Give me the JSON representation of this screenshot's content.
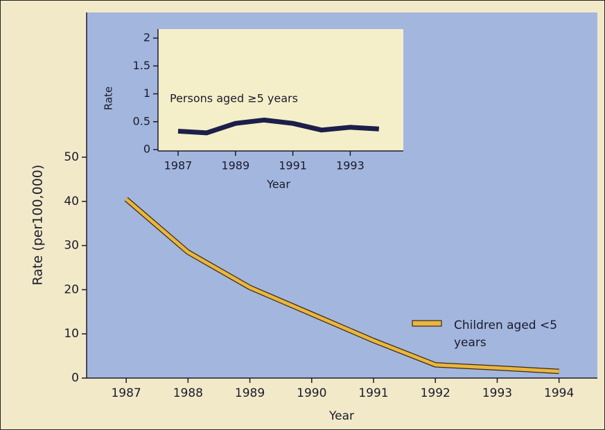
{
  "chart_data": [
    {
      "type": "line",
      "x": [
        1987,
        1988,
        1989,
        1990,
        1991,
        1992,
        1993,
        1994
      ],
      "series": [
        {
          "name": "Children aged <5 years",
          "color": "#e9b640",
          "values": [
            40.5,
            28.5,
            20.5,
            14.5,
            8.5,
            3,
            2.3,
            1.5
          ]
        }
      ],
      "xlim": [
        1986.36,
        1994.62
      ],
      "xticks": [
        1987,
        1988,
        1989,
        1990,
        1991,
        1992,
        1993,
        1994
      ],
      "ylim": [
        0,
        50
      ],
      "yticks": [
        0,
        10,
        20,
        30,
        40,
        50
      ],
      "xlabel": "Year",
      "ylabel": "Rate (per100,000)",
      "legend": "lower right"
    },
    {
      "type": "line",
      "x": [
        1987,
        1988,
        1989,
        1990,
        1991,
        1992,
        1993,
        1994
      ],
      "series": [
        {
          "color": "#1c1f4a",
          "values": [
            0.33,
            0.3,
            0.47,
            0.53,
            0.47,
            0.35,
            0.4,
            0.37
          ]
        }
      ],
      "xlim": [
        1986.3,
        1994.85
      ],
      "xticks": [
        1987,
        1989,
        1991,
        1993
      ],
      "ylim": [
        0,
        2
      ],
      "yticks": [
        0,
        0.5,
        1,
        1.5,
        2
      ],
      "xlabel": "Year",
      "ylabel": "Rate",
      "annotation": "Persons aged ≥5 years"
    }
  ]
}
